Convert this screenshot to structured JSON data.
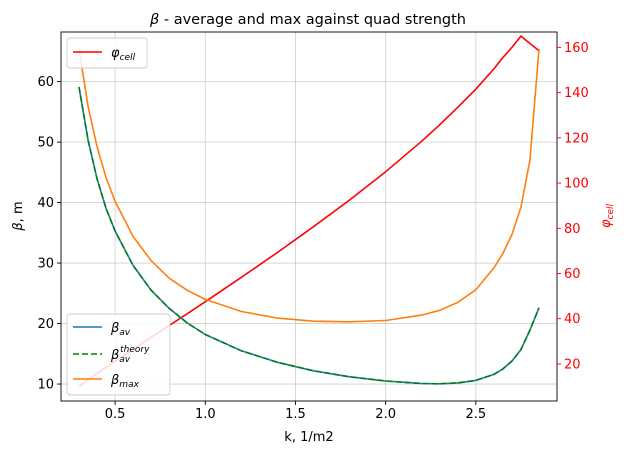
{
  "chart_data": {
    "type": "line",
    "title": "β - average and max against quad strength",
    "xlabel": "k, 1/m2",
    "ylabel": "β, m",
    "y2label": "φcell",
    "xlim": [
      0.2,
      2.95
    ],
    "ylim": [
      7.2,
      68.2
    ],
    "y2lim": [
      3.6,
      166.8
    ],
    "xticks": [
      "0.5",
      "1.0",
      "1.5",
      "2.0",
      "2.5"
    ],
    "xtick_values": [
      0.5,
      1.0,
      1.5,
      2.0,
      2.5
    ],
    "yticks": [
      "10",
      "20",
      "30",
      "40",
      "50",
      "60"
    ],
    "ytick_values": [
      10,
      20,
      30,
      40,
      50,
      60
    ],
    "y2ticks": [
      "20",
      "40",
      "60",
      "80",
      "100",
      "120",
      "140",
      "160"
    ],
    "y2tick_values": [
      20,
      40,
      60,
      80,
      100,
      120,
      140,
      160
    ],
    "grid": true,
    "x": [
      0.3,
      0.35,
      0.4,
      0.45,
      0.5,
      0.6,
      0.7,
      0.8,
      0.9,
      1.0,
      1.2,
      1.4,
      1.6,
      1.8,
      2.0,
      2.2,
      2.3,
      2.4,
      2.5,
      2.6,
      2.65,
      2.7,
      2.75,
      2.8,
      2.85
    ],
    "series": [
      {
        "name": "β_av",
        "axis": "left",
        "color": "#1f77b4",
        "dash": "solid",
        "values": [
          59.1,
          50.3,
          43.9,
          39.0,
          35.3,
          29.6,
          25.5,
          22.5,
          20.1,
          18.2,
          15.5,
          13.6,
          12.2,
          11.2,
          10.5,
          10.1,
          10.05,
          10.2,
          10.6,
          11.6,
          12.5,
          13.8,
          15.7,
          18.9,
          22.6
        ]
      },
      {
        "name": "β_av^theory",
        "axis": "left",
        "color": "#008000",
        "dash": "dashed",
        "values": [
          59.1,
          50.3,
          43.9,
          39.0,
          35.3,
          29.6,
          25.5,
          22.5,
          20.1,
          18.2,
          15.5,
          13.6,
          12.2,
          11.2,
          10.5,
          10.1,
          10.05,
          10.2,
          10.6,
          11.6,
          12.5,
          13.8,
          15.7,
          18.9,
          22.6
        ]
      },
      {
        "name": "β_max",
        "axis": "left",
        "color": "#ff7f0e",
        "dash": "solid",
        "values": [
          65.4,
          55.9,
          49.2,
          44.1,
          40.2,
          34.4,
          30.4,
          27.5,
          25.5,
          24.0,
          22.0,
          20.9,
          20.4,
          20.3,
          20.5,
          21.4,
          22.2,
          23.5,
          25.6,
          29.2,
          31.6,
          34.7,
          39.2,
          47.0,
          65.4
        ]
      },
      {
        "name": "φcell",
        "axis": "right",
        "color": "#ff0000",
        "dash": "solid",
        "values": [
          10.0,
          13.0,
          15.8,
          18.5,
          21.2,
          26.5,
          31.8,
          37.0,
          42.2,
          47.5,
          58.3,
          69.3,
          80.7,
          92.5,
          105.0,
          118.5,
          125.8,
          133.5,
          141.5,
          150.5,
          155.5,
          160.0,
          165.0,
          170.0,
          158.5
        ]
      }
    ],
    "legends": [
      {
        "placement": "upper-left",
        "entries": [
          "φcell"
        ]
      },
      {
        "placement": "lower-left",
        "entries": [
          "β_av",
          "β_av^theory",
          "β_max"
        ]
      }
    ],
    "colors": {
      "phi_axis": "#ff0000"
    }
  },
  "labels": {
    "title_prefix": "β",
    "title_rest": " - average and max against quad strength",
    "xlabel": "k, 1/m2",
    "ylabel_sym": "β",
    "ylabel_rest": ", m",
    "y2label_sym": "φ",
    "y2label_sub": "cell",
    "legend_phi_sym": "φ",
    "legend_phi_sub": "cell",
    "legend_bav_sym": "β",
    "legend_bav_sub": "av",
    "legend_bth_sym": "β",
    "legend_bth_sub": "av",
    "legend_bth_sup": "theory",
    "legend_bmax_sym": "β",
    "legend_bmax_sub": "max"
  }
}
